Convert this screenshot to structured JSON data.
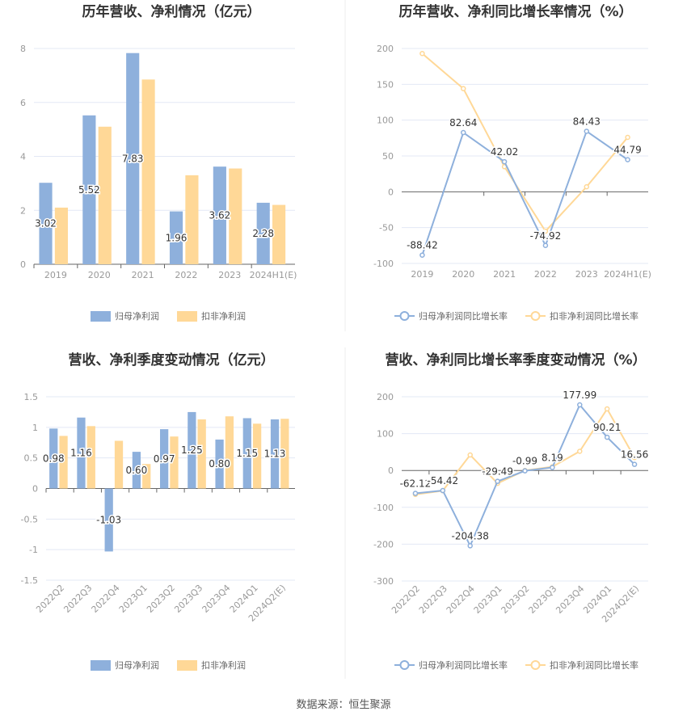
{
  "source": "数据来源：恒生聚源",
  "colors": {
    "primary": "#8eb0dc",
    "secondary": "#ffd897",
    "grid": "#e3e8f5",
    "axis": "#666666"
  },
  "chart_data": [
    {
      "type": "bar",
      "title": "历年营收、净利情况（亿元）",
      "categories": [
        "2019",
        "2020",
        "2021",
        "2022",
        "2023",
        "2024H1(E)"
      ],
      "ylim": [
        0,
        8
      ],
      "yticks": [
        0,
        2,
        4,
        6,
        8
      ],
      "series": [
        {
          "name": "归母净利润",
          "values": [
            3.02,
            5.52,
            7.83,
            1.96,
            3.62,
            2.28
          ],
          "labels": [
            "3.02",
            "5.52",
            "7.83",
            "1.96",
            "3.62",
            "2.28"
          ]
        },
        {
          "name": "扣非净利润",
          "values": [
            2.1,
            5.1,
            6.85,
            3.3,
            3.55,
            2.2
          ]
        }
      ],
      "legend": "bottom"
    },
    {
      "type": "line",
      "title": "历年营收、净利同比增长率情况（%）",
      "categories": [
        "2019",
        "2020",
        "2021",
        "2022",
        "2023",
        "2024H1(E)"
      ],
      "ylim": [
        -100,
        200
      ],
      "yticks": [
        -100,
        -50,
        0,
        50,
        100,
        150,
        200
      ],
      "series": [
        {
          "name": "归母净利润同比增长率",
          "values": [
            -88.42,
            82.64,
            42.02,
            -74.92,
            84.43,
            44.79
          ],
          "labels": [
            "-88.42",
            "82.64",
            "42.02",
            "-74.92",
            "84.43",
            "44.79"
          ]
        },
        {
          "name": "扣非净利润同比增长率",
          "values": [
            193,
            144,
            35,
            -55,
            7,
            76
          ]
        }
      ],
      "legend": "bottom"
    },
    {
      "type": "bar",
      "title": "营收、净利季度变动情况（亿元）",
      "categories": [
        "2022Q2",
        "2022Q3",
        "2022Q4",
        "2023Q1",
        "2023Q2",
        "2023Q3",
        "2023Q4",
        "2024Q1",
        "2024Q2(E)"
      ],
      "ylim": [
        -1.5,
        1.5
      ],
      "yticks": [
        -1.5,
        -1,
        -0.5,
        0,
        0.5,
        1,
        1.5
      ],
      "series": [
        {
          "name": "归母净利润",
          "values": [
            0.98,
            1.16,
            -1.03,
            0.6,
            0.97,
            1.25,
            0.8,
            1.15,
            1.13
          ],
          "labels": [
            "0.98",
            "1.16",
            "-1.03",
            "0.60",
            "0.97",
            "1.25",
            "0.80",
            "1.15",
            "1.13"
          ]
        },
        {
          "name": "扣非净利润",
          "values": [
            0.86,
            1.02,
            0.78,
            0.4,
            0.85,
            1.13,
            1.18,
            1.06,
            1.14
          ]
        }
      ],
      "legend": "bottom"
    },
    {
      "type": "line",
      "title": "营收、净利同比增长率季度变动情况（%）",
      "categories": [
        "2022Q2",
        "2022Q3",
        "2022Q4",
        "2023Q1",
        "2023Q2",
        "2023Q3",
        "2023Q4",
        "2024Q1",
        "2024Q2(E)"
      ],
      "ylim": [
        -300,
        200
      ],
      "yticks": [
        -300,
        -200,
        -100,
        0,
        100,
        200
      ],
      "series": [
        {
          "name": "归母净利润同比增长率",
          "values": [
            -62.12,
            -54.42,
            -204.38,
            -29.49,
            -0.99,
            8.19,
            177.99,
            90.21,
            16.56
          ],
          "labels": [
            "-62.12",
            "-54.42",
            "-204.38",
            "-29.49",
            "-0.99",
            "8.19",
            "177.99",
            "90.21",
            "16.56"
          ]
        },
        {
          "name": "扣非净利润同比增长率",
          "values": [
            -65,
            -55,
            42,
            -35,
            0,
            10,
            52,
            167,
            35
          ]
        }
      ],
      "legend": "bottom"
    }
  ]
}
